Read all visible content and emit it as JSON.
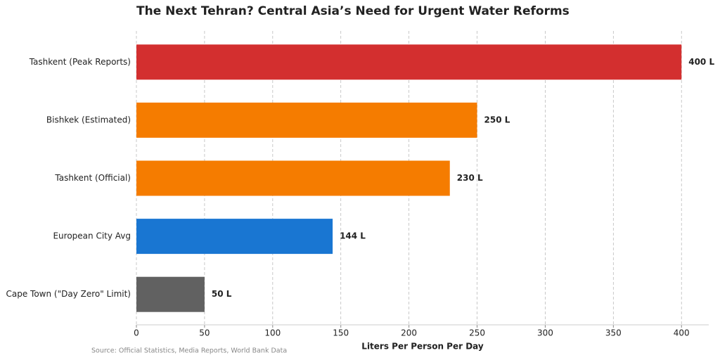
{
  "chart_data": {
    "type": "bar",
    "orientation": "horizontal",
    "title": "The Next Tehran? Central Asia’s Need for Urgent Water Reforms",
    "categories": [
      "Tashkent (Peak Reports)",
      "Bishkek (Estimated)",
      "Tashkent (Official)",
      "European City Avg",
      "Cape Town (\"Day Zero\" Limit)"
    ],
    "values": [
      400,
      250,
      230,
      144,
      50
    ],
    "value_labels": [
      "400 L",
      "250 L",
      "230 L",
      "144 L",
      "50 L"
    ],
    "colors": [
      "#d32f2f",
      "#f57c00",
      "#f57c00",
      "#1976d2",
      "#616161"
    ],
    "xlabel": "Liters Per Person Per Day",
    "xlim": [
      0,
      420
    ],
    "xticks": [
      0,
      50,
      100,
      150,
      200,
      250,
      300,
      350,
      400
    ],
    "grid": true,
    "source": "Source: Official Statistics, Media Reports, World Bank Data"
  }
}
